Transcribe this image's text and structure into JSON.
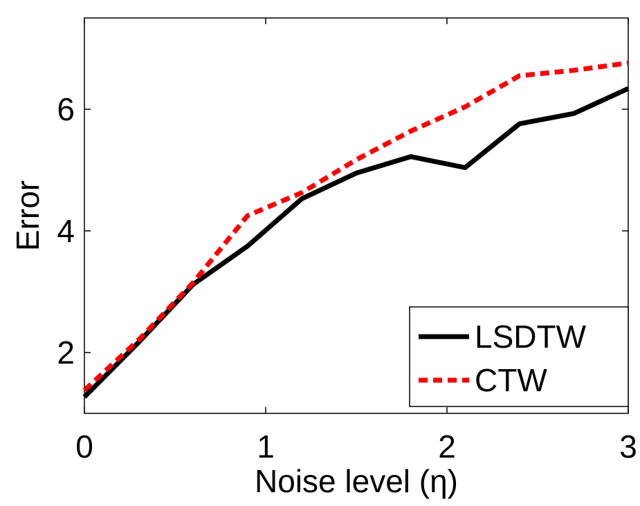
{
  "chart_data": {
    "type": "line",
    "title": "",
    "xlabel": "Noise level (η)",
    "ylabel": "Error",
    "xlim": [
      0,
      3
    ],
    "ylim": [
      1.0,
      7.5
    ],
    "xticks": [
      0,
      1,
      2,
      3
    ],
    "xtick_labels": [
      "0",
      "1",
      "2",
      "3"
    ],
    "yticks": [
      2,
      4,
      6
    ],
    "ytick_labels": [
      "2",
      "4",
      "6"
    ],
    "grid": false,
    "legend_position": "bottom-right",
    "x": [
      0,
      0.3,
      0.6,
      0.9,
      1.2,
      1.5,
      1.8,
      2.1,
      2.4,
      2.7,
      3.0
    ],
    "series": [
      {
        "name": "LSDTW",
        "color": "#000000",
        "style": "solid",
        "values": [
          1.27,
          2.17,
          3.12,
          3.75,
          4.53,
          4.95,
          5.22,
          5.04,
          5.76,
          5.93,
          6.34
        ]
      },
      {
        "name": "CTW",
        "color": "#ff0000",
        "style": "dashed",
        "values": [
          1.38,
          2.21,
          3.15,
          4.25,
          4.63,
          5.17,
          5.64,
          6.04,
          6.55,
          6.64,
          6.76
        ]
      }
    ]
  }
}
